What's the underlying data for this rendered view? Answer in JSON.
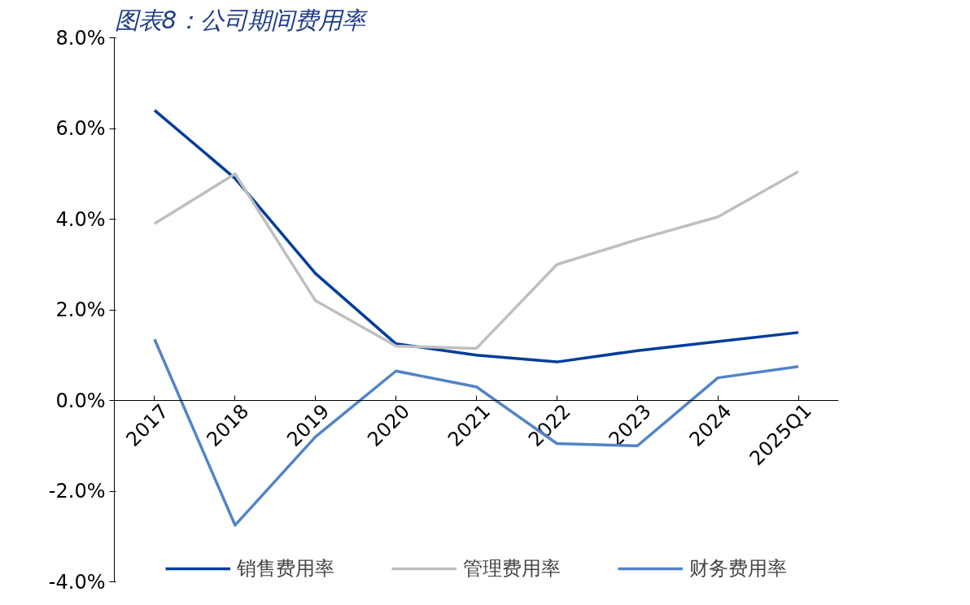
{
  "chart_data": {
    "type": "line",
    "title": "图表8：公司期间费用率",
    "categories": [
      "2017",
      "2018",
      "2019",
      "2020",
      "2021",
      "2022",
      "2023",
      "2024",
      "2025Q1"
    ],
    "series": [
      {
        "name": "销售费用率",
        "color": "#003d9a",
        "values": [
          6.4,
          4.9,
          2.8,
          1.25,
          1.0,
          0.85,
          1.1,
          1.3,
          1.5
        ]
      },
      {
        "name": "管理费用率",
        "color": "#bfbfbf",
        "values": [
          3.9,
          5.0,
          2.2,
          1.2,
          1.15,
          3.0,
          3.55,
          4.05,
          5.05
        ]
      },
      {
        "name": "财务费用率",
        "color": "#5283c8",
        "values": [
          1.35,
          -2.75,
          -0.8,
          0.65,
          0.3,
          -0.95,
          -1.0,
          0.5,
          0.75
        ]
      }
    ],
    "ylim": [
      -4,
      8
    ],
    "yticks": [
      {
        "value": -4,
        "label": "-4.0%"
      },
      {
        "value": -2,
        "label": "-2.0%"
      },
      {
        "value": 0,
        "label": "0.0%"
      },
      {
        "value": 2,
        "label": "2.0%"
      },
      {
        "value": 4,
        "label": "4.0%"
      },
      {
        "value": 6,
        "label": "6.0%"
      },
      {
        "value": 8,
        "label": "8.0%"
      }
    ],
    "grid": false,
    "legend": "bottom",
    "marker": "none",
    "line_style": "solid"
  }
}
